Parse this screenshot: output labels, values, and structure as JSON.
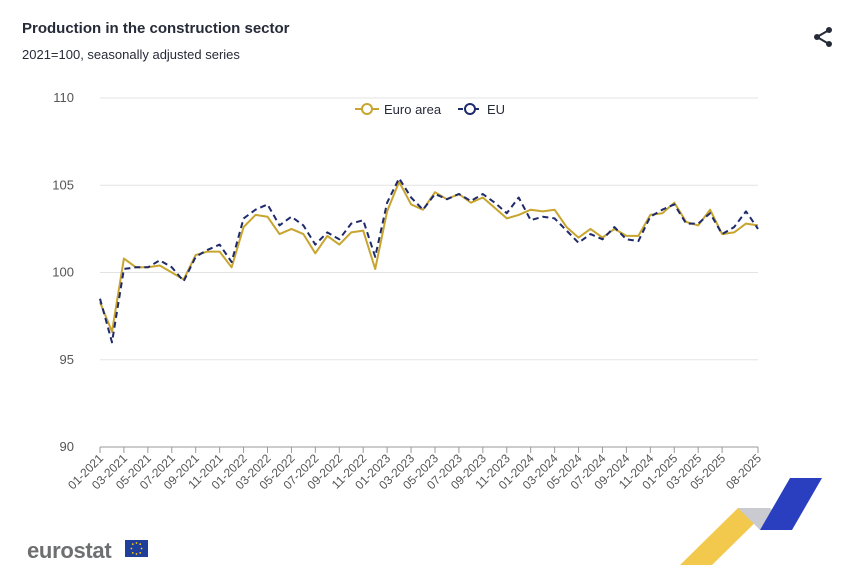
{
  "header": {
    "title": "Production in the construction sector",
    "subtitle": "2021=100, seasonally adjusted series"
  },
  "icons": {
    "share": "share-icon",
    "eu_flag": "eu-flag-icon"
  },
  "brand": {
    "logo_text": "eurostat"
  },
  "colors": {
    "euro_area": "#c7a52e",
    "eu": "#1e2a6b",
    "grid": "#e3e3e3",
    "axis_text": "#555555",
    "logo_grey": "#6e6f70",
    "stripe_yellow": "#f2c94c",
    "stripe_blue": "#2a3fbf"
  },
  "chart_data": {
    "type": "line",
    "title": "Production in the construction sector",
    "subtitle": "2021=100, seasonally adjusted series",
    "xlabel": "",
    "ylabel": "",
    "ylim": [
      90,
      110
    ],
    "yticks": [
      90,
      95,
      100,
      105,
      110
    ],
    "grid": true,
    "legend_position": "top-center",
    "x": [
      "01-2021",
      "02-2021",
      "03-2021",
      "04-2021",
      "05-2021",
      "06-2021",
      "07-2021",
      "08-2021",
      "09-2021",
      "10-2021",
      "11-2021",
      "12-2021",
      "01-2022",
      "02-2022",
      "03-2022",
      "04-2022",
      "05-2022",
      "06-2022",
      "07-2022",
      "08-2022",
      "09-2022",
      "10-2022",
      "11-2022",
      "12-2022",
      "01-2023",
      "02-2023",
      "03-2023",
      "04-2023",
      "05-2023",
      "06-2023",
      "07-2023",
      "08-2023",
      "09-2023",
      "10-2023",
      "11-2023",
      "12-2023",
      "01-2024",
      "02-2024",
      "03-2024",
      "04-2024",
      "05-2024",
      "06-2024",
      "07-2024",
      "08-2024",
      "09-2024",
      "10-2024",
      "11-2024",
      "12-2024",
      "01-2025",
      "02-2025",
      "03-2025",
      "04-2025",
      "05-2025",
      "06-2025",
      "07-2025",
      "08-2025"
    ],
    "xticks": [
      "01-2021",
      "03-2021",
      "05-2021",
      "07-2021",
      "09-2021",
      "11-2021",
      "01-2022",
      "03-2022",
      "05-2022",
      "07-2022",
      "09-2022",
      "11-2022",
      "01-2023",
      "03-2023",
      "05-2023",
      "07-2023",
      "09-2023",
      "11-2023",
      "01-2024",
      "03-2024",
      "05-2024",
      "07-2024",
      "09-2024",
      "11-2024",
      "01-2025",
      "03-2025",
      "05-2025",
      "08-2025"
    ],
    "series": [
      {
        "name": "Euro area",
        "style": "solid",
        "values": [
          98.3,
          96.6,
          100.8,
          100.3,
          100.3,
          100.4,
          100.0,
          99.6,
          101.0,
          101.2,
          101.2,
          100.3,
          102.6,
          103.3,
          103.2,
          102.2,
          102.5,
          102.2,
          101.1,
          102.1,
          101.6,
          102.3,
          102.4,
          100.2,
          103.5,
          105.2,
          103.9,
          103.6,
          104.6,
          104.2,
          104.5,
          104.0,
          104.3,
          103.7,
          103.1,
          103.3,
          103.6,
          103.5,
          103.6,
          102.6,
          102.0,
          102.5,
          102.0,
          102.5,
          102.1,
          102.1,
          103.3,
          103.4,
          104.0,
          102.9,
          102.7,
          103.6,
          102.2,
          102.3,
          102.8,
          102.7
        ]
      },
      {
        "name": "EU",
        "style": "dashed",
        "values": [
          98.5,
          96.0,
          100.2,
          100.3,
          100.3,
          100.7,
          100.3,
          99.5,
          100.9,
          101.3,
          101.6,
          100.6,
          103.1,
          103.6,
          103.9,
          102.7,
          103.2,
          102.7,
          101.6,
          102.3,
          101.9,
          102.8,
          103.0,
          100.9,
          104.0,
          105.4,
          104.3,
          103.6,
          104.5,
          104.2,
          104.5,
          104.1,
          104.5,
          104.0,
          103.4,
          104.3,
          103.0,
          103.2,
          103.1,
          102.4,
          101.7,
          102.2,
          101.9,
          102.6,
          101.9,
          101.8,
          103.2,
          103.6,
          103.9,
          102.8,
          102.8,
          103.4,
          102.2,
          102.6,
          103.5,
          102.5
        ]
      }
    ]
  }
}
